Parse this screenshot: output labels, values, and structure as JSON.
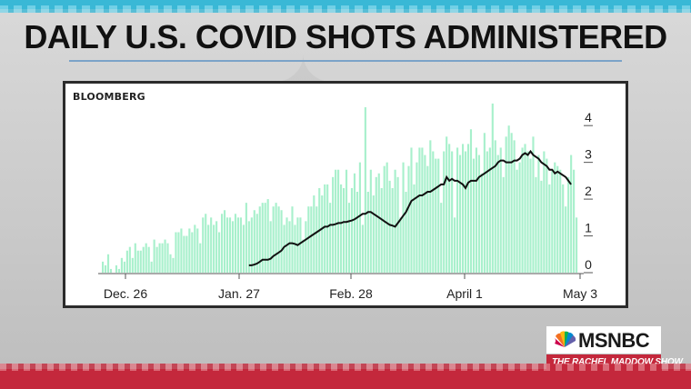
{
  "headline": "DAILY U.S. COVID SHOTS ADMINISTERED",
  "network": {
    "name": "MSNBC",
    "show": "THE RACHEL MADDOW SHOW"
  },
  "colors": {
    "bars": "#a8f0cc",
    "line": "#111111",
    "accent_blue": "#39b8d6",
    "accent_red": "#c4283c"
  },
  "chart_data": {
    "type": "bar",
    "source": "BLOOMBERG",
    "x_tick_labels": [
      "Dec. 26",
      "Jan. 27",
      "Feb. 28",
      "April 1",
      "May 3"
    ],
    "y_tick_labels": [
      "0",
      "1",
      "2",
      "3",
      "4"
    ],
    "ylim": [
      0,
      4.4
    ],
    "yaxis_side": "right",
    "grid": false,
    "series": [
      {
        "type": "bar",
        "values": [
          0.3,
          0.2,
          0.5,
          0.1,
          0.0,
          0.2,
          0.1,
          0.4,
          0.3,
          0.6,
          0.7,
          0.4,
          0.8,
          0.6,
          0.6,
          0.7,
          0.8,
          0.7,
          0.3,
          0.9,
          0.7,
          0.8,
          0.8,
          0.9,
          0.8,
          0.5,
          0.4,
          1.1,
          1.1,
          1.2,
          1.0,
          1.0,
          1.2,
          1.1,
          1.3,
          1.2,
          0.8,
          1.5,
          1.6,
          1.3,
          1.5,
          1.3,
          1.4,
          1.1,
          1.6,
          1.7,
          1.5,
          1.5,
          1.4,
          1.6,
          1.5,
          1.5,
          1.3,
          1.9,
          1.4,
          1.5,
          1.7,
          1.6,
          1.8,
          1.9,
          1.9,
          2.0,
          1.4,
          1.8,
          1.9,
          1.8,
          1.7,
          1.3,
          1.5,
          1.4,
          1.8,
          1.3,
          1.5,
          1.5,
          0.9,
          1.4,
          1.8,
          1.8,
          2.1,
          1.8,
          2.3,
          2.1,
          2.4,
          2.4,
          1.9,
          2.6,
          2.8,
          2.8,
          2.4,
          2.3,
          2.8,
          1.9,
          2.3,
          2.7,
          2.2,
          3.0,
          1.3,
          4.5,
          2.2,
          2.8,
          2.1,
          2.6,
          2.7,
          2.3,
          2.9,
          3.0,
          2.5,
          2.3,
          2.8,
          2.6,
          1.5,
          3.0,
          2.2,
          2.9,
          3.4,
          2.4,
          3.0,
          3.4,
          3.4,
          3.2,
          2.9,
          3.6,
          3.3,
          3.1,
          3.1,
          1.9,
          3.3,
          3.7,
          3.5,
          3.3,
          1.5,
          3.4,
          3.2,
          3.5,
          3.3,
          3.5,
          3.9,
          3.1,
          3.4,
          3.2,
          2.7,
          3.8,
          3.3,
          3.4,
          4.6,
          3.6,
          3.2,
          3.4,
          2.6,
          3.7,
          4.0,
          3.8,
          3.6,
          2.8,
          3.0,
          3.4,
          3.5,
          3.3,
          3.1,
          3.7,
          2.6,
          3.2,
          2.5,
          3.3,
          3.1,
          2.4,
          2.8,
          3.0,
          2.9,
          2.8,
          2.4,
          1.8,
          2.6,
          3.2,
          2.8,
          1.5
        ]
      },
      {
        "type": "line",
        "values": [
          0.2,
          0.2,
          0.22,
          0.25,
          0.3,
          0.35,
          0.35,
          0.35,
          0.38,
          0.45,
          0.5,
          0.55,
          0.6,
          0.7,
          0.75,
          0.8,
          0.8,
          0.78,
          0.75,
          0.8,
          0.85,
          0.9,
          0.95,
          1.0,
          1.05,
          1.1,
          1.15,
          1.2,
          1.25,
          1.25,
          1.3,
          1.3,
          1.32,
          1.35,
          1.35,
          1.38,
          1.38,
          1.4,
          1.42,
          1.45,
          1.5,
          1.55,
          1.6,
          1.6,
          1.65,
          1.65,
          1.6,
          1.55,
          1.5,
          1.45,
          1.4,
          1.35,
          1.3,
          1.28,
          1.25,
          1.35,
          1.45,
          1.55,
          1.65,
          1.8,
          1.95,
          2.0,
          2.05,
          2.1,
          2.1,
          2.15,
          2.2,
          2.2,
          2.25,
          2.3,
          2.35,
          2.4,
          2.4,
          2.6,
          2.5,
          2.55,
          2.5,
          2.5,
          2.45,
          2.4,
          2.3,
          2.45,
          2.5,
          2.5,
          2.5,
          2.6,
          2.65,
          2.7,
          2.75,
          2.8,
          2.85,
          2.9,
          3.0,
          3.05,
          3.05,
          3.0,
          3.0,
          3.0,
          3.05,
          3.05,
          3.1,
          3.2,
          3.25,
          3.2,
          3.3,
          3.2,
          3.15,
          3.1,
          3.0,
          2.95,
          2.9,
          2.8,
          2.8,
          2.7,
          2.75,
          2.7,
          2.65,
          2.6,
          2.5,
          2.4
        ]
      }
    ]
  }
}
